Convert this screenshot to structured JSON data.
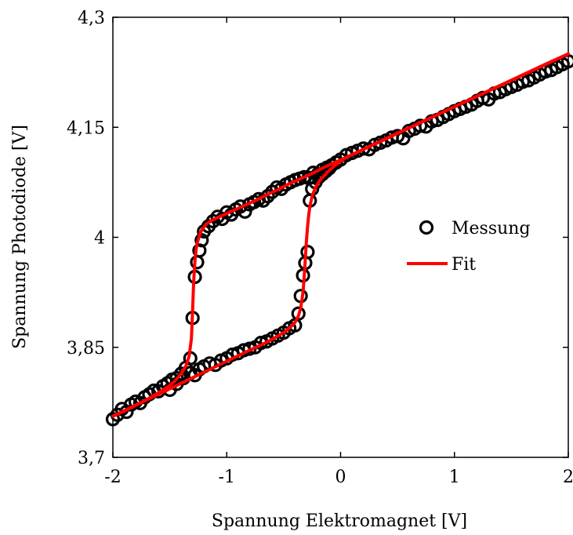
{
  "chart_data": {
    "type": "scatter",
    "xlabel": "Spannung Elektromagnet [V]",
    "ylabel": "Spannung Photodiode [V]",
    "xlim": [
      -2,
      2
    ],
    "ylim": [
      3.7,
      4.3
    ],
    "xticks": [
      -2,
      -1,
      0,
      1,
      2
    ],
    "xtick_labels": [
      "-2",
      "-1",
      "0",
      "1",
      "2"
    ],
    "yticks": [
      3.7,
      3.85,
      4.0,
      4.15,
      4.3
    ],
    "ytick_labels": [
      "3,7",
      "3,85",
      "4",
      "4,15",
      "4,3"
    ],
    "grid": false,
    "legend_position": "right",
    "series": [
      {
        "name": "Messung",
        "style": "open-circle",
        "color": "#000000",
        "x": [
          -2.0,
          -1.96,
          -1.92,
          -1.88,
          -1.84,
          -1.8,
          -1.76,
          -1.72,
          -1.68,
          -1.64,
          -1.6,
          -1.56,
          -1.52,
          -1.48,
          -1.44,
          -1.4,
          -1.36,
          -1.32,
          -1.3,
          -1.28,
          -1.26,
          -1.24,
          -1.22,
          -1.2,
          -1.16,
          -1.12,
          -1.08,
          -1.04,
          -1.0,
          -0.96,
          -0.92,
          -0.88,
          -0.84,
          -0.8,
          -0.76,
          -0.72,
          -0.68,
          -0.64,
          -0.6,
          -0.56,
          -0.52,
          -0.48,
          -0.44,
          -0.4,
          -0.36,
          -0.32,
          -0.28,
          -0.24,
          -0.2,
          -0.16,
          -0.12,
          -0.08,
          -0.04,
          0.0,
          0.05,
          0.1,
          0.15,
          0.2,
          0.25,
          0.3,
          0.35,
          0.4,
          0.45,
          0.5,
          0.55,
          0.6,
          0.65,
          0.7,
          0.75,
          0.8,
          0.85,
          0.9,
          0.95,
          1.0,
          1.05,
          1.1,
          1.15,
          1.2,
          1.25,
          1.3,
          1.35,
          1.4,
          1.45,
          1.5,
          1.55,
          1.6,
          1.65,
          1.7,
          1.75,
          1.8,
          1.85,
          1.9,
          1.95,
          2.0,
          -1.5,
          -1.44,
          -1.38,
          -1.32,
          -1.28,
          -1.24,
          -1.2,
          -1.15,
          -1.1,
          -1.05,
          -1.0,
          -0.95,
          -0.9,
          -0.85,
          -0.8,
          -0.75,
          -0.7,
          -0.65,
          -0.6,
          -0.55,
          -0.5,
          -0.45,
          -0.4,
          -0.37,
          -0.35,
          -0.33,
          -0.31,
          -0.29,
          -0.27,
          -0.25,
          -0.22,
          -0.19,
          -0.16,
          -0.13,
          -0.1
        ],
        "y": [
          3.752,
          3.758,
          3.766,
          3.762,
          3.772,
          3.776,
          3.774,
          3.782,
          3.786,
          3.791,
          3.79,
          3.797,
          3.801,
          3.806,
          3.808,
          3.814,
          3.822,
          3.835,
          3.89,
          3.946,
          3.966,
          3.982,
          3.996,
          4.008,
          4.015,
          4.022,
          4.028,
          4.025,
          4.034,
          4.031,
          4.038,
          4.042,
          4.035,
          4.045,
          4.048,
          4.052,
          4.05,
          4.056,
          4.062,
          4.068,
          4.066,
          4.072,
          4.075,
          4.078,
          4.08,
          4.082,
          4.081,
          4.088,
          4.086,
          4.092,
          4.095,
          4.098,
          4.102,
          4.106,
          4.112,
          4.115,
          4.118,
          4.121,
          4.12,
          4.126,
          4.129,
          4.132,
          4.136,
          4.138,
          4.135,
          4.145,
          4.148,
          4.152,
          4.151,
          4.158,
          4.16,
          4.164,
          4.168,
          4.172,
          4.175,
          4.178,
          4.181,
          4.186,
          4.19,
          4.188,
          4.196,
          4.198,
          4.202,
          4.205,
          4.208,
          4.212,
          4.214,
          4.218,
          4.222,
          4.226,
          4.228,
          4.232,
          4.236,
          4.24,
          3.792,
          3.8,
          3.808,
          3.815,
          3.812,
          3.82,
          3.824,
          3.828,
          3.826,
          3.832,
          3.835,
          3.84,
          3.842,
          3.846,
          3.848,
          3.85,
          3.856,
          3.858,
          3.862,
          3.866,
          3.87,
          3.876,
          3.88,
          3.896,
          3.92,
          3.948,
          3.965,
          3.98,
          4.05,
          4.066,
          4.075,
          4.082,
          4.086,
          4.09,
          4.094
        ]
      },
      {
        "name": "Fit",
        "style": "line",
        "color": "#ff0000",
        "branches": [
          {
            "x": [
              -2.0,
              -1.9,
              -1.8,
              -1.7,
              -1.6,
              -1.5,
              -1.45,
              -1.4,
              -1.36,
              -1.33,
              -1.31,
              -1.3,
              -1.29,
              -1.28,
              -1.27,
              -1.26,
              -1.24,
              -1.22,
              -1.18,
              -1.12,
              -1.05,
              -0.95,
              -0.85,
              -0.75,
              -0.65,
              -0.55,
              -0.45,
              -0.35,
              -0.25,
              -0.15,
              -0.05,
              0.05,
              0.3,
              0.6,
              1.0,
              1.4,
              1.8,
              2.0
            ],
            "y": [
              3.756,
              3.763,
              3.771,
              3.779,
              3.788,
              3.798,
              3.805,
              3.814,
              3.824,
              3.838,
              3.862,
              3.9,
              3.94,
              3.966,
              3.982,
              3.992,
              4.002,
              4.01,
              4.018,
              4.024,
              4.029,
              4.036,
              4.043,
              4.05,
              4.058,
              4.065,
              4.073,
              4.08,
              4.087,
              4.095,
              4.102,
              4.109,
              4.127,
              4.149,
              4.178,
              4.207,
              4.236,
              4.25
            ]
          },
          {
            "x": [
              -2.0,
              -1.8,
              -1.6,
              -1.4,
              -1.2,
              -1.0,
              -0.8,
              -0.7,
              -0.6,
              -0.5,
              -0.45,
              -0.4,
              -0.37,
              -0.35,
              -0.33,
              -0.32,
              -0.31,
              -0.3,
              -0.29,
              -0.28,
              -0.27,
              -0.25,
              -0.22,
              -0.18,
              -0.12,
              -0.05,
              0.05,
              0.2,
              0.5,
              1.0,
              1.5,
              2.0
            ],
            "y": [
              3.756,
              3.771,
              3.786,
              3.801,
              3.816,
              3.831,
              3.846,
              3.853,
              3.861,
              3.87,
              3.876,
              3.884,
              3.893,
              3.904,
              3.925,
              3.945,
              3.97,
              3.995,
              4.015,
              4.03,
              4.042,
              4.056,
              4.068,
              4.078,
              4.088,
              4.098,
              4.109,
              4.12,
              4.142,
              4.178,
              4.214,
              4.25
            ]
          }
        ]
      }
    ]
  }
}
